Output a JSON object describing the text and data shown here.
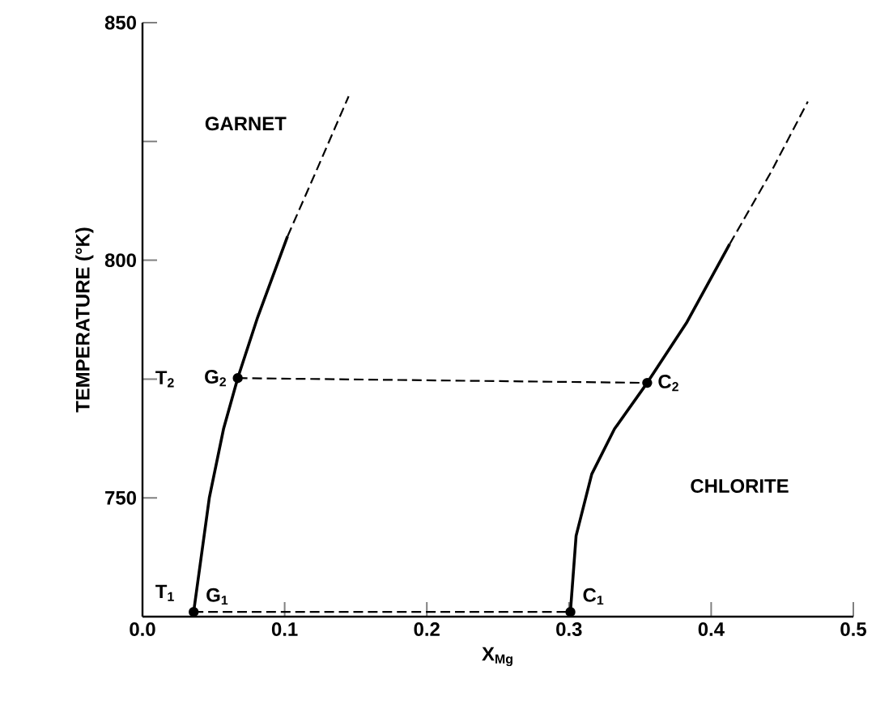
{
  "chart_data": {
    "type": "line",
    "xlabel": "X$_{Mg}$",
    "ylabel": "TEMPERATURE (°K)",
    "xlim": [
      0,
      0.5
    ],
    "ylim": [
      725,
      850
    ],
    "xticks": [
      {
        "value": 0,
        "label": "0.0"
      },
      0.1,
      0.2,
      0.3,
      0.4,
      0.5
    ],
    "yticks": [
      750,
      {
        "value": 775,
        "label": null
      },
      800,
      {
        "value": 825,
        "label": null
      },
      850
    ],
    "grid": false,
    "series": [
      {
        "color": "#000000",
        "line_style": "solid",
        "marker": "none",
        "x": [
          0.036,
          0.047,
          0.057,
          0.067,
          0.081,
          0.102
        ],
        "values": [
          726,
          750,
          764.5,
          775.2,
          788,
          805
        ]
      },
      {
        "color": "#000000",
        "line_style": "dashed",
        "marker": "none",
        "x": [
          0.102,
          0.124,
          0.145
        ],
        "values": [
          805,
          820,
          834.5
        ]
      },
      {
        "color": "#000000",
        "line_style": "solid",
        "marker": "none",
        "x": [
          0.301,
          0.305,
          0.316,
          0.332,
          0.355,
          0.383,
          0.413
        ],
        "values": [
          726,
          742,
          755,
          764.5,
          774.2,
          787,
          803.4
        ]
      },
      {
        "color": "#000000",
        "line_style": "dashed",
        "marker": "none",
        "x": [
          0.413,
          0.442,
          0.468
        ],
        "values": [
          803.4,
          818.5,
          833.4
        ]
      },
      {
        "color": "#000000",
        "line_style": "dashed",
        "marker": "none",
        "x": [
          0.067,
          0.355
        ],
        "values": [
          775.2,
          774.2
        ]
      },
      {
        "color": "#000000",
        "line_style": "dashed",
        "marker": "none",
        "x": [
          0.036,
          0.301
        ],
        "values": [
          726,
          726
        ]
      },
      {
        "type": "scatter",
        "color": "#000000",
        "marker": "circle",
        "x": [
          0.067,
          0.355,
          0.036,
          0.301
        ],
        "values": [
          775.2,
          774.2,
          726,
          726
        ]
      }
    ],
    "annotations": [
      "T$_{2}$",
      {
        "text": "G$_{2}$",
        "x": 0.067,
        "y": 775.2
      },
      {
        "text": "C$_{2}$",
        "x": 0.355,
        "y": 774.2
      },
      "T$_{1}$",
      {
        "text": "G$_{1}$",
        "x": 0.036,
        "y": 726
      },
      {
        "text": "C$_{1}$",
        "x": 0.301,
        "y": 726
      },
      "GARNET",
      "CHLORITE"
    ]
  }
}
